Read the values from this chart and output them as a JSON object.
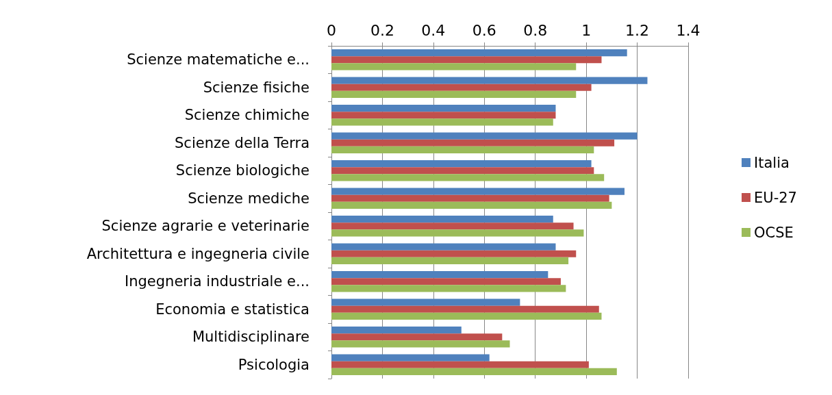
{
  "chart_data": {
    "type": "bar",
    "orientation": "horizontal",
    "categories": [
      "Scienze matematiche e...",
      "Scienze fisiche",
      "Scienze chimiche",
      "Scienze della Terra",
      "Scienze biologiche",
      "Scienze mediche",
      "Scienze agrarie e veterinarie",
      "Architettura e ingegneria civile",
      "Ingegneria industriale e...",
      "Economia e statistica",
      "Multidisciplinare",
      "Psicologia"
    ],
    "series": [
      {
        "name": "Italia",
        "color": "#4f81bd",
        "values": [
          1.16,
          1.24,
          0.88,
          1.2,
          1.02,
          1.15,
          0.87,
          0.88,
          0.85,
          0.74,
          0.51,
          0.62
        ]
      },
      {
        "name": "EU-27",
        "color": "#c0504d",
        "values": [
          1.06,
          1.02,
          0.88,
          1.11,
          1.03,
          1.09,
          0.95,
          0.96,
          0.9,
          1.05,
          0.67,
          1.01
        ]
      },
      {
        "name": "OCSE",
        "color": "#9bbb59",
        "values": [
          0.96,
          0.96,
          0.87,
          1.03,
          1.07,
          1.1,
          0.99,
          0.93,
          0.92,
          1.06,
          0.7,
          1.12
        ]
      }
    ],
    "xlim": [
      0,
      1.4
    ],
    "xticks": [
      0,
      0.2,
      0.4,
      0.6,
      0.8,
      1,
      1.2,
      1.4
    ],
    "grid": "x",
    "legend": "right"
  }
}
